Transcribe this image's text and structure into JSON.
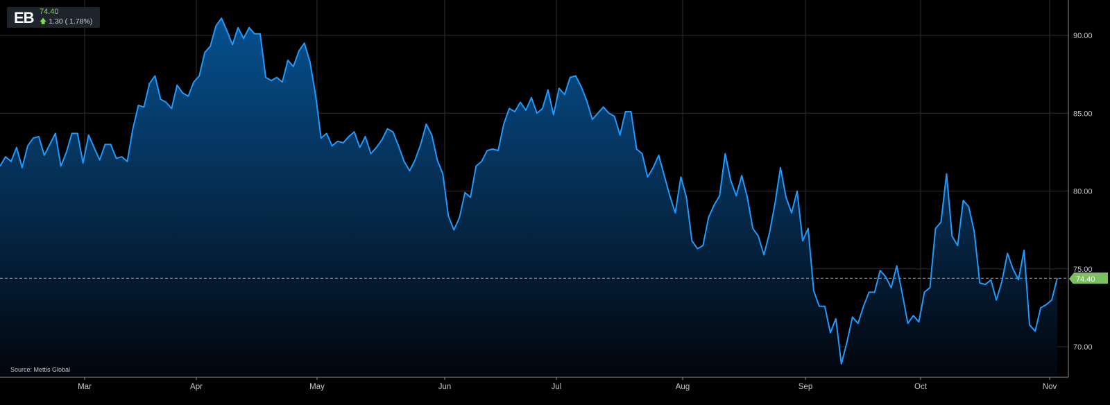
{
  "ticker": {
    "symbol": "EB",
    "price": "74.40",
    "change": "1.30 ( 1.78%)"
  },
  "source": "Source: Mettis Global",
  "last_price_label": "74.40",
  "colors": {
    "background": "#000000",
    "line": "#1e9bff",
    "grid": "#2a2f36",
    "axis_text": "#c8c8c8",
    "up": "#7ed957",
    "price_tag": "#7cbf63"
  },
  "chart_data": {
    "type": "area",
    "title": "",
    "xlabel": "",
    "ylabel": "",
    "ylim": [
      68,
      92.2
    ],
    "grid": true,
    "y_axis_position": "right",
    "y_ticks": [
      "70.00",
      "75.00",
      "80.00",
      "85.00",
      "90.00"
    ],
    "y_tick_values": [
      70,
      75,
      80,
      85,
      90
    ],
    "x_ticks": [
      "Mar",
      "Apr",
      "May",
      "Jun",
      "Jul",
      "Aug",
      "Sep",
      "Oct",
      "Nov"
    ],
    "last_value": 74.4,
    "reference_line": 74.4,
    "series": [
      {
        "values": [
          81.6,
          82.2,
          81.9,
          82.8,
          81.5,
          82.9,
          83.4,
          83.5,
          82.3,
          83.0,
          83.7,
          81.6,
          82.5,
          83.7,
          83.7,
          81.8,
          83.6,
          82.8,
          82.0,
          83.0,
          83.0,
          82.1,
          82.2,
          81.9,
          84.0,
          85.5,
          85.4,
          86.9,
          87.4,
          85.9,
          85.7,
          85.3,
          86.8,
          86.3,
          86.1,
          87.0,
          87.4,
          88.9,
          89.3,
          90.6,
          91.1,
          90.3,
          89.4,
          90.5,
          89.8,
          90.5,
          90.1,
          90.1,
          87.3,
          87.1,
          87.3,
          87.0,
          88.4,
          88.0,
          89.0,
          89.5,
          88.3,
          86.2,
          83.4,
          83.7,
          82.9,
          83.2,
          83.1,
          83.5,
          83.8,
          82.8,
          83.5,
          82.4,
          82.8,
          83.3,
          84.0,
          83.8,
          82.9,
          81.9,
          81.3,
          82.0,
          83.0,
          84.3,
          83.6,
          82.0,
          81.1,
          78.4,
          77.5,
          78.3,
          79.9,
          79.6,
          81.6,
          81.9,
          82.6,
          82.7,
          82.6,
          84.3,
          85.3,
          85.1,
          85.7,
          85.2,
          86.0,
          85.0,
          85.3,
          86.5,
          84.9,
          86.6,
          86.2,
          87.3,
          87.4,
          86.7,
          85.8,
          84.6,
          85.0,
          85.4,
          85.0,
          84.8,
          83.6,
          85.1,
          85.1,
          82.7,
          82.4,
          80.9,
          81.5,
          82.3,
          81.0,
          79.7,
          78.6,
          80.9,
          79.6,
          76.8,
          76.3,
          76.5,
          78.3,
          79.1,
          79.7,
          82.4,
          80.7,
          79.7,
          81.0,
          79.6,
          77.6,
          77.1,
          75.9,
          77.3,
          79.2,
          81.5,
          79.6,
          78.6,
          80.0,
          76.8,
          77.6,
          73.6,
          72.6,
          72.6,
          70.9,
          71.8,
          68.9,
          70.3,
          71.9,
          71.5,
          72.6,
          73.5,
          73.5,
          74.9,
          74.5,
          73.8,
          75.2,
          73.4,
          71.5,
          72.0,
          71.6,
          73.5,
          73.8,
          77.6,
          78.0,
          81.1,
          77.1,
          76.5,
          79.4,
          79.0,
          77.4,
          74.1,
          74.0,
          74.3,
          73.0,
          74.2,
          76.0,
          75.0,
          74.3,
          76.2,
          71.4,
          71.0,
          72.5,
          72.7,
          73.0,
          74.4
        ]
      }
    ]
  }
}
